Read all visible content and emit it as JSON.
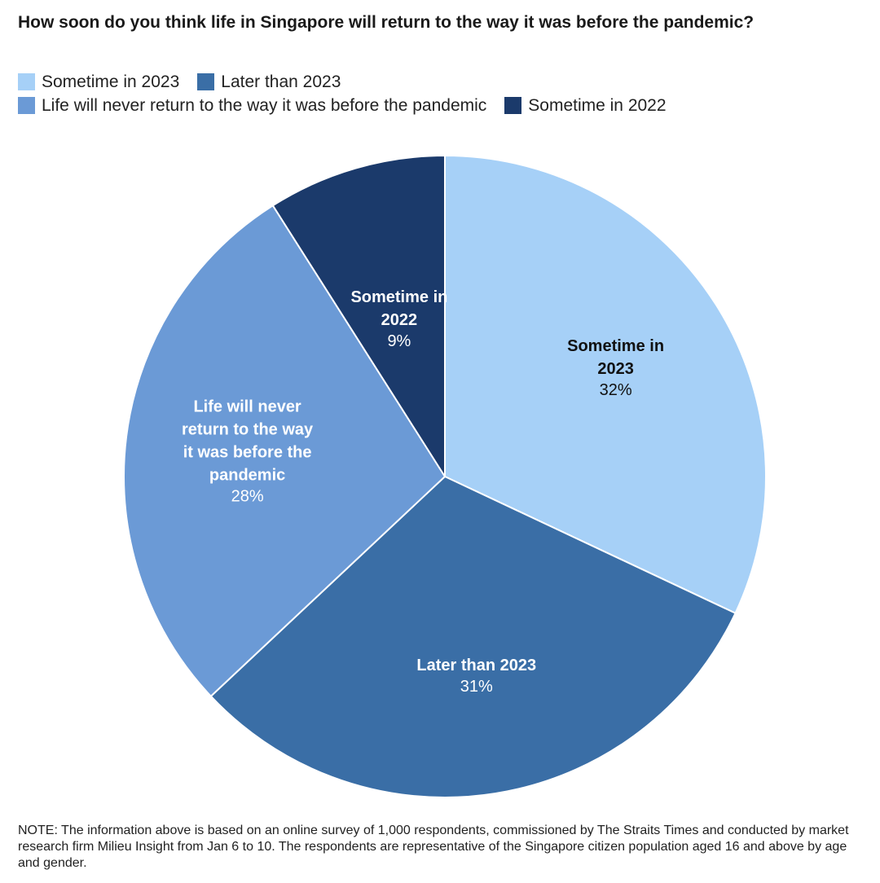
{
  "chart_data": {
    "type": "pie",
    "title": "How soon do you think life in Singapore will return to the way it was before the pandemic?",
    "legend": [
      [
        "Sometime in 2023",
        "Later than 2023"
      ],
      [
        "Life will never return to the way it was before the pandemic",
        "Sometime in 2022"
      ]
    ],
    "slices": [
      {
        "name": "Sometime in 2023",
        "value": 32,
        "value_label": "32%",
        "label_lines": [
          "Sometime in",
          "2023"
        ],
        "color": "#a6d0f7",
        "text_color": "#111111"
      },
      {
        "name": "Later than 2023",
        "value": 31,
        "value_label": "31%",
        "label_lines": [
          "Later than 2023"
        ],
        "color": "#3a6ea6",
        "text_color": "#ffffff"
      },
      {
        "name": "Life will never return to the way it was before the pandemic",
        "value": 28,
        "value_label": "28%",
        "label_lines": [
          "Life will never",
          "return to the way",
          "it was before the",
          "pandemic"
        ],
        "color": "#6b9ad6",
        "text_color": "#ffffff"
      },
      {
        "name": "Sometime in 2022",
        "value": 9,
        "value_label": "9%",
        "label_lines": [
          "Sometime in",
          "2022"
        ],
        "color": "#1b3a6b",
        "text_color": "#ffffff"
      }
    ],
    "start_angle_deg": 0,
    "direction": "clockwise"
  },
  "note": "NOTE: The information above is based on an online survey of 1,000 respondents, commissioned by The Straits Times and conducted by market research firm Milieu Insight from Jan 6 to 10. The respondents are representative of the Singapore citizen population aged 16 and above by age and gender."
}
